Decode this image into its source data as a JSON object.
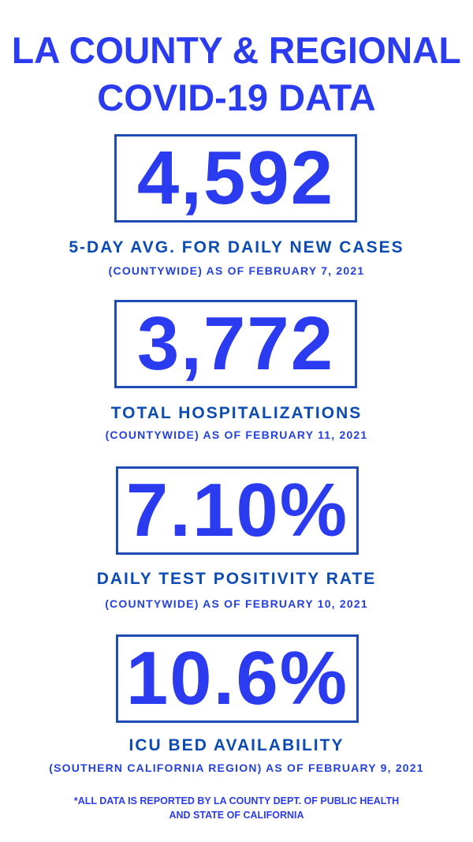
{
  "title": {
    "line1": "LA COUNTY & REGIONAL",
    "line2": "COVID-19 DATA"
  },
  "stats": [
    {
      "value": "4,592",
      "label": "5-DAY AVG. FOR DAILY NEW CASES",
      "sub": "(COUNTYWIDE) AS OF FEBRUARY 7, 2021"
    },
    {
      "value": "3,772",
      "label": "TOTAL HOSPITALIZATIONS",
      "sub": "(COUNTYWIDE) AS OF FEBRUARY 11, 2021"
    },
    {
      "value": "7.10%",
      "label": "DAILY TEST POSITIVITY RATE",
      "sub": "(COUNTYWIDE) AS OF FEBRUARY 10, 2021"
    },
    {
      "value": "10.6%",
      "label": "ICU BED AVAILABILITY",
      "sub": "(SOUTHERN CALIFORNIA REGION) AS OF FEBRUARY 9, 2021"
    }
  ],
  "footnote": {
    "line1": "*ALL DATA IS REPORTED BY LA COUNTY DEPT. OF PUBLIC HEALTH",
    "line2": "AND STATE OF CALIFORNIA"
  },
  "colors": {
    "accent": "#2b3bef",
    "label": "#0b4bb3",
    "border": "#1e4bb5"
  }
}
